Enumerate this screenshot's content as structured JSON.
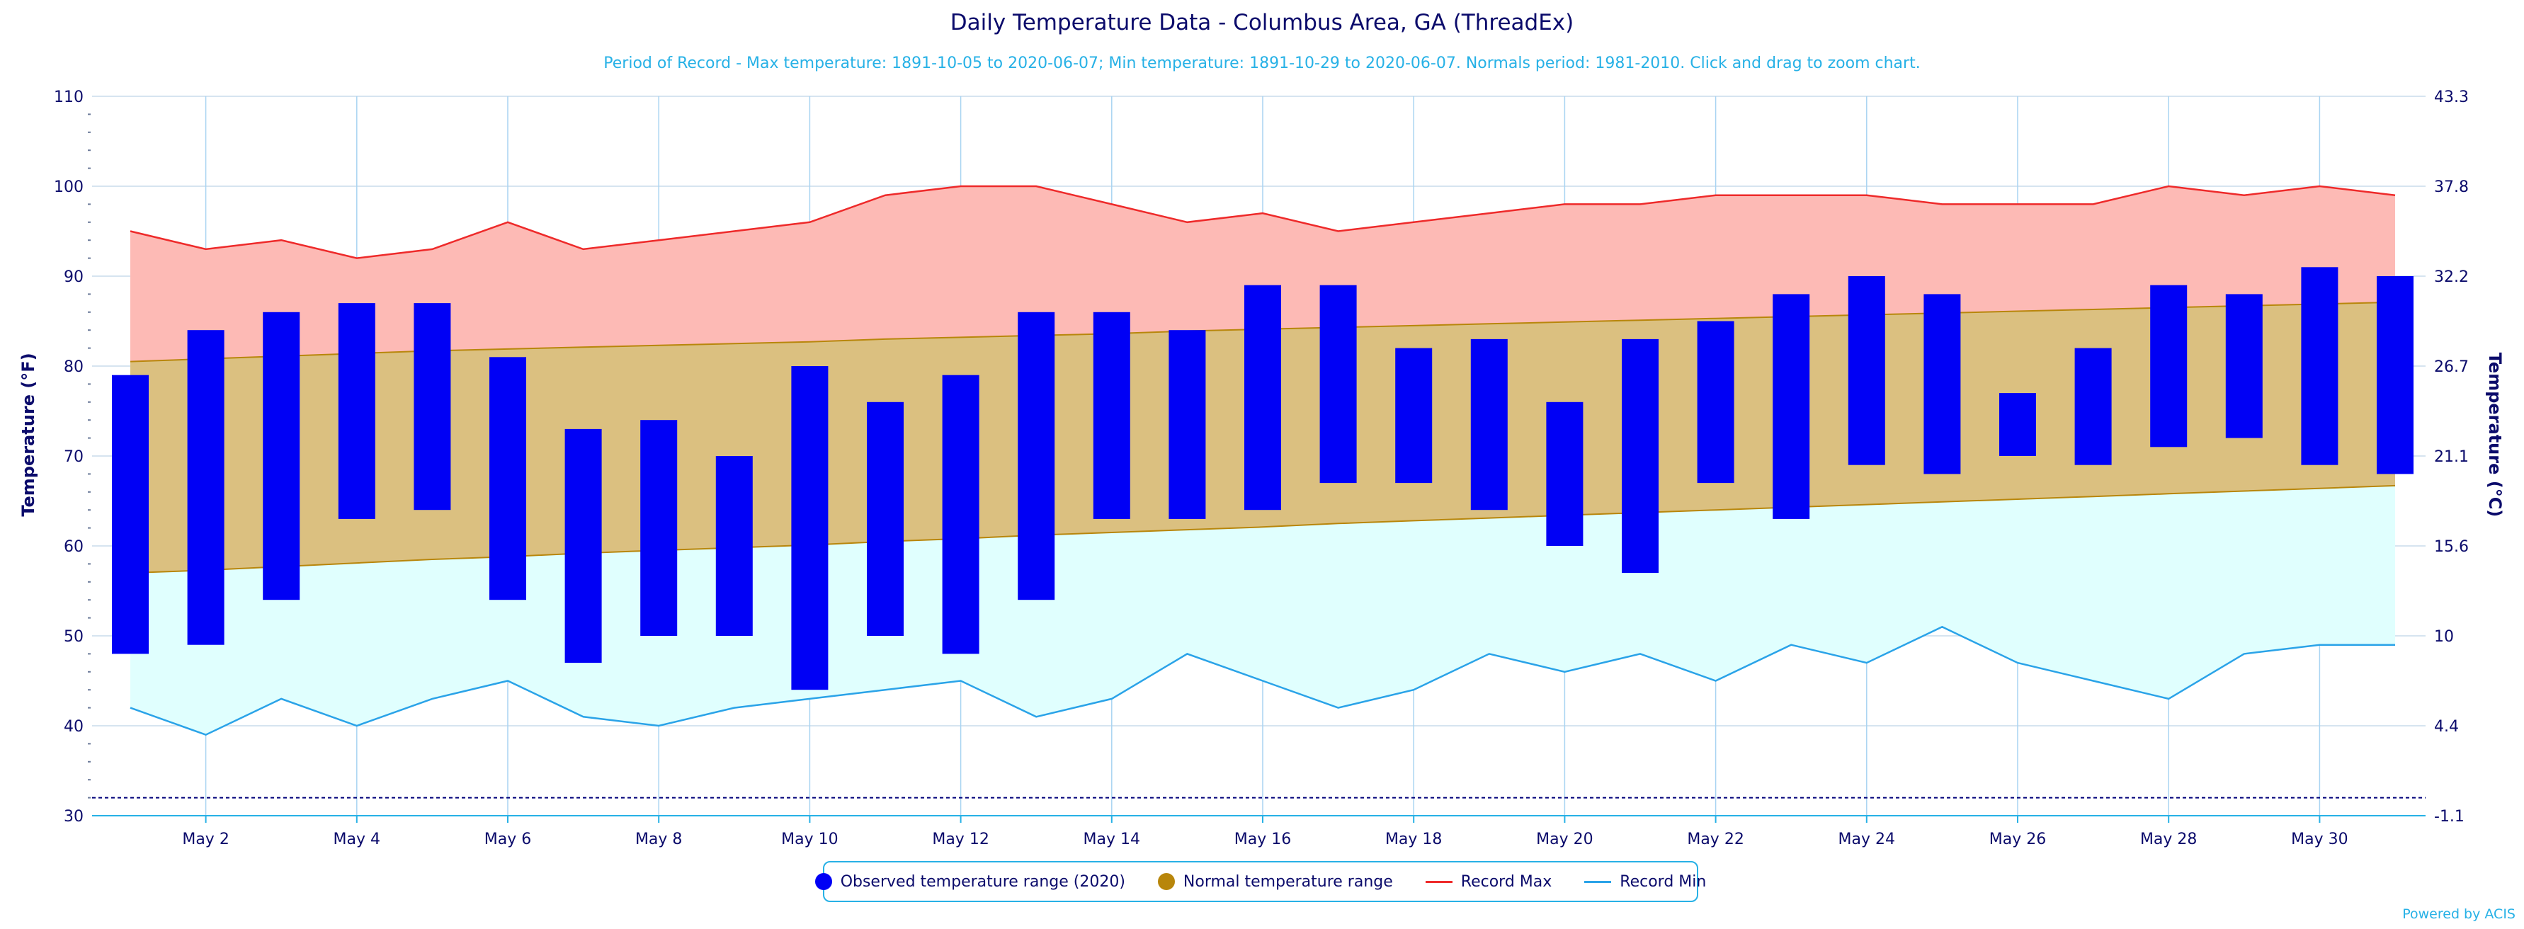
{
  "chart_data": {
    "type": "bar",
    "title": "Daily Temperature Data - Columbus Area, GA (ThreadEx)",
    "subtitle": "Period of Record - Max temperature: 1891-10-05 to 2020-06-07; Min temperature: 1891-10-29 to 2020-06-07. Normals period: 1981-2010. Click and drag to zoom chart.",
    "ylabel": "Temperature (°F)",
    "ylabel_right": "Temperature (°C)",
    "ylim": [
      30,
      110
    ],
    "y_ticks": [
      "30",
      "40",
      "50",
      "60",
      "70",
      "80",
      "90",
      "100",
      "110"
    ],
    "y_ticks_right": [
      "-1.1",
      "4.4",
      "10",
      "15.6",
      "21.1",
      "26.7",
      "32.2",
      "37.8",
      "43.3"
    ],
    "x_days": [
      1,
      31
    ],
    "x_tick_labels": [
      {
        "day": 2,
        "label": "May 2"
      },
      {
        "day": 4,
        "label": "May 4"
      },
      {
        "day": 6,
        "label": "May 6"
      },
      {
        "day": 8,
        "label": "May 8"
      },
      {
        "day": 10,
        "label": "May 10"
      },
      {
        "day": 12,
        "label": "May 12"
      },
      {
        "day": 14,
        "label": "May 14"
      },
      {
        "day": 16,
        "label": "May 16"
      },
      {
        "day": 18,
        "label": "May 18"
      },
      {
        "day": 20,
        "label": "May 20"
      },
      {
        "day": 22,
        "label": "May 22"
      },
      {
        "day": 24,
        "label": "May 24"
      },
      {
        "day": 26,
        "label": "May 26"
      },
      {
        "day": 28,
        "label": "May 28"
      },
      {
        "day": 30,
        "label": "May 30"
      }
    ],
    "grid": true,
    "reference_line": 32,
    "series": {
      "observed": {
        "name": "Observed temperature range (2020)",
        "color": "#0000f5",
        "low": [
          48,
          49,
          54,
          63,
          64,
          54,
          47,
          50,
          50,
          44,
          50,
          48,
          54,
          63,
          63,
          64,
          67,
          67,
          64,
          60,
          57,
          67,
          63,
          69,
          68,
          70,
          69,
          71,
          72,
          69,
          68
        ],
        "high": [
          79,
          84,
          86,
          87,
          87,
          81,
          73,
          74,
          70,
          80,
          76,
          79,
          86,
          86,
          84,
          89,
          89,
          82,
          83,
          76,
          83,
          85,
          88,
          90,
          88,
          77,
          82,
          89,
          88,
          91,
          90
        ]
      },
      "normal": {
        "name": "Normal temperature range",
        "color": "#b8860b",
        "fill": "#dbc080",
        "low": [
          57,
          57.3,
          57.7,
          58.1,
          58.5,
          58.8,
          59.2,
          59.5,
          59.8,
          60.1,
          60.5,
          60.8,
          61.2,
          61.5,
          61.8,
          62.1,
          62.5,
          62.8,
          63.1,
          63.4,
          63.7,
          64,
          64.3,
          64.6,
          64.9,
          65.2,
          65.5,
          65.8,
          66.1,
          66.4,
          66.7
        ],
        "high": [
          80.5,
          80.8,
          81.1,
          81.4,
          81.7,
          81.9,
          82.1,
          82.3,
          82.5,
          82.7,
          83,
          83.2,
          83.4,
          83.6,
          83.9,
          84.1,
          84.3,
          84.5,
          84.7,
          84.9,
          85.1,
          85.3,
          85.5,
          85.7,
          85.9,
          86.1,
          86.3,
          86.5,
          86.7,
          86.9,
          87.1
        ]
      },
      "record_max": {
        "name": "Record Max",
        "color": "#ee2a2a",
        "fill": "#fdbab5",
        "values": [
          95,
          93,
          94,
          92,
          93,
          96,
          93,
          94,
          95,
          96,
          99,
          100,
          100,
          98,
          96,
          97,
          95,
          96,
          97,
          98,
          98,
          99,
          99,
          99,
          98,
          98,
          98,
          100,
          99,
          100,
          99
        ]
      },
      "record_min": {
        "name": "Record Min",
        "color": "#2aa3e8",
        "fill": "#e0fffe",
        "values": [
          42,
          39,
          43,
          40,
          43,
          45,
          41,
          40,
          42,
          43,
          44,
          45,
          41,
          43,
          48,
          45,
          42,
          44,
          48,
          46,
          48,
          45,
          49,
          47,
          51,
          47,
          45,
          43,
          48,
          49,
          49
        ]
      }
    }
  },
  "credits": "Powered by ACIS"
}
